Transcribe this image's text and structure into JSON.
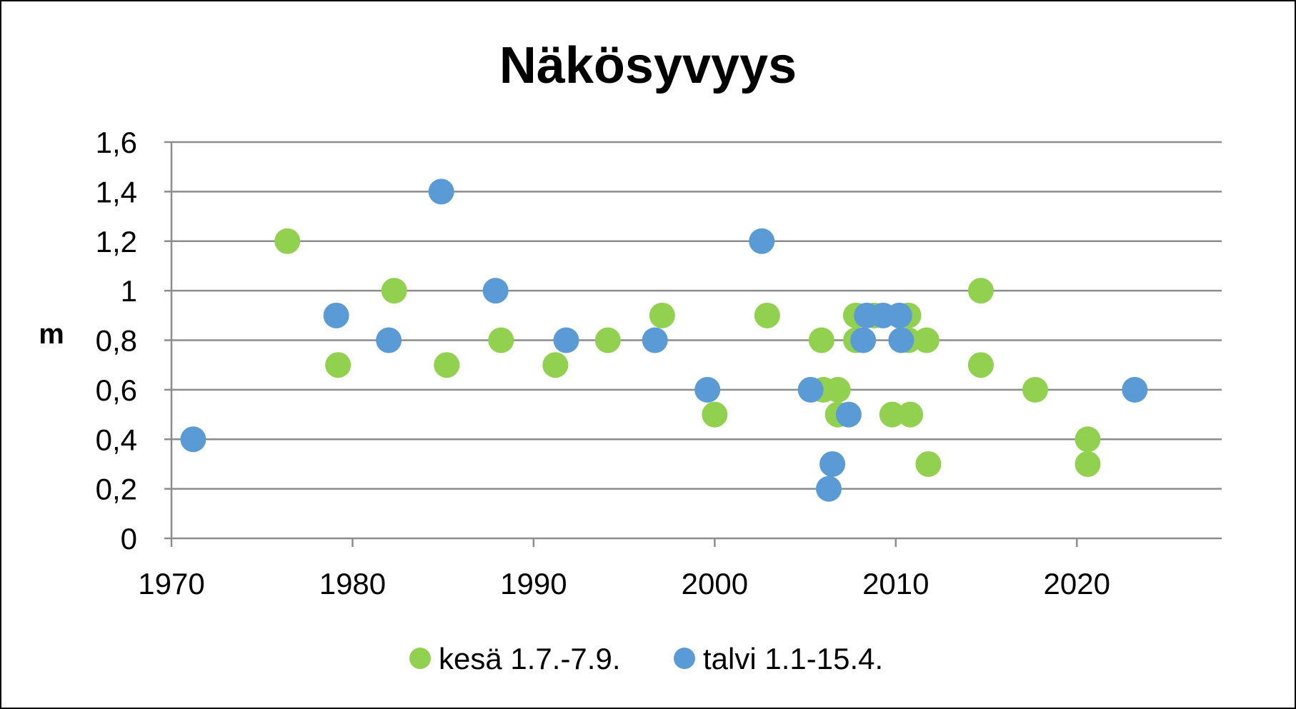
{
  "chart_data": {
    "type": "scatter",
    "title": "Näkösyvyys",
    "xlabel": "",
    "ylabel": "m",
    "xlim": [
      1970,
      2028
    ],
    "ylim": [
      0,
      1.6
    ],
    "xticks": [
      1970,
      1980,
      1990,
      2000,
      2010,
      2020
    ],
    "xtick_labels": [
      "1970",
      "1980",
      "1990",
      "2000",
      "2010",
      "2020"
    ],
    "yticks": [
      0,
      0.2,
      0.4,
      0.6,
      0.8,
      1,
      1.2,
      1.4,
      1.6
    ],
    "ytick_labels": [
      "0",
      "0,2",
      "0,4",
      "0,6",
      "0,8",
      "1",
      "1,2",
      "1,4",
      "1,6"
    ],
    "grid": "horizontal",
    "legend_position": "bottom",
    "series": [
      {
        "name": "kesä 1.7.-7.9.",
        "color": "#92d050",
        "points": [
          {
            "x": 1976.4,
            "y": 1.2
          },
          {
            "x": 1979.2,
            "y": 0.7
          },
          {
            "x": 1982.3,
            "y": 1.0
          },
          {
            "x": 1985.2,
            "y": 0.7
          },
          {
            "x": 1988.2,
            "y": 0.8
          },
          {
            "x": 1991.2,
            "y": 0.7
          },
          {
            "x": 1994.1,
            "y": 0.8
          },
          {
            "x": 1997.1,
            "y": 0.9
          },
          {
            "x": 2000.0,
            "y": 0.5
          },
          {
            "x": 2002.9,
            "y": 0.9
          },
          {
            "x": 2005.9,
            "y": 0.8
          },
          {
            "x": 2006.0,
            "y": 0.6
          },
          {
            "x": 2006.8,
            "y": 0.6
          },
          {
            "x": 2006.8,
            "y": 0.5
          },
          {
            "x": 2007.8,
            "y": 0.9
          },
          {
            "x": 2007.8,
            "y": 0.8
          },
          {
            "x": 2008.8,
            "y": 0.9
          },
          {
            "x": 2009.8,
            "y": 0.5
          },
          {
            "x": 2010.7,
            "y": 0.9
          },
          {
            "x": 2010.7,
            "y": 0.8
          },
          {
            "x": 2010.8,
            "y": 0.5
          },
          {
            "x": 2011.7,
            "y": 0.8
          },
          {
            "x": 2011.8,
            "y": 0.3
          },
          {
            "x": 2014.7,
            "y": 1.0
          },
          {
            "x": 2014.7,
            "y": 0.7
          },
          {
            "x": 2017.7,
            "y": 0.6
          },
          {
            "x": 2020.6,
            "y": 0.4
          },
          {
            "x": 2020.6,
            "y": 0.3
          }
        ]
      },
      {
        "name": "talvi 1.1-15.4.",
        "color": "#5b9bd5",
        "points": [
          {
            "x": 1971.2,
            "y": 0.4
          },
          {
            "x": 1979.1,
            "y": 0.9
          },
          {
            "x": 1982.0,
            "y": 0.8
          },
          {
            "x": 1984.9,
            "y": 1.4
          },
          {
            "x": 1987.9,
            "y": 1.0
          },
          {
            "x": 1991.8,
            "y": 0.8
          },
          {
            "x": 1996.7,
            "y": 0.8
          },
          {
            "x": 1999.6,
            "y": 0.6
          },
          {
            "x": 2002.6,
            "y": 1.2
          },
          {
            "x": 2005.3,
            "y": 0.6
          },
          {
            "x": 2006.3,
            "y": 0.2
          },
          {
            "x": 2006.5,
            "y": 0.3
          },
          {
            "x": 2007.4,
            "y": 0.5
          },
          {
            "x": 2008.2,
            "y": 0.8
          },
          {
            "x": 2008.4,
            "y": 0.9
          },
          {
            "x": 2009.3,
            "y": 0.9
          },
          {
            "x": 2010.2,
            "y": 0.9
          },
          {
            "x": 2010.3,
            "y": 0.8
          },
          {
            "x": 2023.2,
            "y": 0.6
          }
        ]
      }
    ]
  }
}
